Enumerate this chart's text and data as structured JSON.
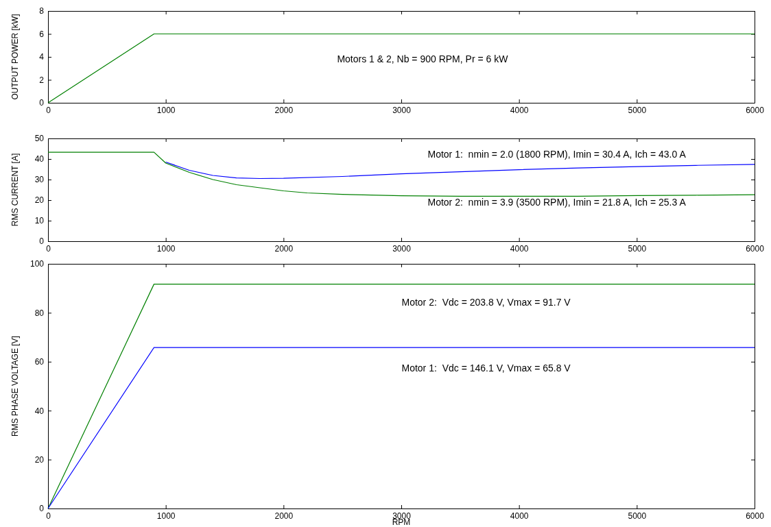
{
  "chart_data": [
    {
      "type": "line",
      "ylabel": "OUTPUT POWER [kW]",
      "xlim": [
        0,
        6000
      ],
      "xticks": [
        0,
        1000,
        2000,
        3000,
        4000,
        5000,
        6000
      ],
      "ylim": [
        0,
        8
      ],
      "yticks": [
        0,
        2,
        4,
        6,
        8
      ],
      "grid": false,
      "series": [
        {
          "color": "#008000",
          "x": [
            0,
            900,
            6000
          ],
          "values": [
            0,
            6,
            6
          ]
        }
      ],
      "annotations": [
        "Motors 1 & 2, Nb = 900 RPM, Pr = 6 kW"
      ]
    },
    {
      "type": "line",
      "ylabel": "RMS CURRENT [A]",
      "xlim": [
        0,
        6000
      ],
      "xticks": [
        0,
        1000,
        2000,
        3000,
        4000,
        5000,
        6000
      ],
      "ylim": [
        0,
        50
      ],
      "yticks": [
        0,
        10,
        20,
        30,
        40,
        50
      ],
      "grid": false,
      "series": [
        {
          "color": "#0000ff",
          "x": [
            1000,
            1200,
            1400,
            1600,
            1800,
            2000,
            2500,
            3000,
            3500,
            4000,
            4500,
            5000,
            5500,
            6000
          ],
          "values": [
            38.5,
            34.5,
            32,
            30.8,
            30.5,
            30.6,
            31.5,
            32.8,
            33.8,
            34.8,
            35.6,
            36.3,
            36.9,
            37.4
          ]
        },
        {
          "color": "#008000",
          "x": [
            0,
            900,
            1000,
            1200,
            1400,
            1600,
            1800,
            2000,
            2200,
            2500,
            3000,
            3500,
            4000,
            4500,
            5000,
            5500,
            6000
          ],
          "values": [
            43.3,
            43.3,
            38,
            33.5,
            30,
            27.5,
            26,
            24.5,
            23.5,
            22.8,
            22.1,
            21.9,
            21.9,
            21.9,
            22.2,
            22.4,
            22.6
          ]
        }
      ],
      "annotations": [
        "Motor 1:  nmin = 2.0 (1800 RPM), Imin = 30.4 A, Ich = 43.0 A",
        "Motor 2:  nmin = 3.9 (3500 RPM), Imin = 21.8 A, Ich = 25.3 A"
      ]
    },
    {
      "type": "line",
      "xlabel": "RPM",
      "ylabel": "RMS PHASE VOLTAGE [V]",
      "xlim": [
        0,
        6000
      ],
      "xticks": [
        0,
        1000,
        2000,
        3000,
        4000,
        5000,
        6000
      ],
      "ylim": [
        0,
        100
      ],
      "yticks": [
        0,
        20,
        40,
        60,
        80,
        100
      ],
      "grid": false,
      "series": [
        {
          "color": "#008000",
          "x": [
            0,
            900,
            6000
          ],
          "values": [
            0,
            91.7,
            91.7
          ]
        },
        {
          "color": "#0000ff",
          "x": [
            0,
            900,
            6000
          ],
          "values": [
            0,
            65.8,
            65.8
          ]
        }
      ],
      "annotations": [
        "Motor 2:  Vdc = 203.8 V, Vmax = 91.7 V",
        "Motor 1:  Vdc = 146.1 V, Vmax = 65.8 V"
      ]
    }
  ]
}
